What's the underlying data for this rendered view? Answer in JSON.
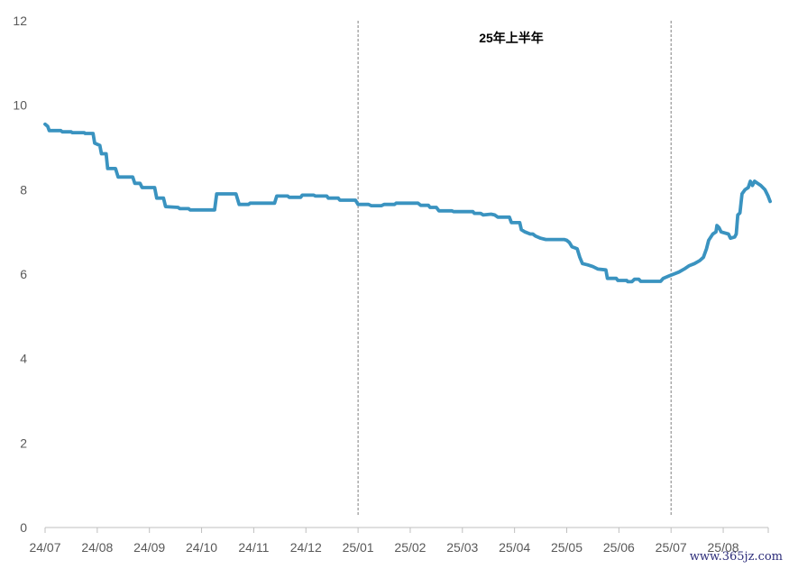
{
  "chart_data": {
    "type": "line",
    "title": "",
    "xlabel": "",
    "ylabel": "",
    "ylim": [
      0,
      12
    ],
    "yticks": [
      0,
      2,
      4,
      6,
      8,
      10,
      12
    ],
    "x_tick_labels": [
      "24/07",
      "24/08",
      "24/09",
      "24/10",
      "24/11",
      "24/12",
      "25/01",
      "25/02",
      "25/03",
      "25/04",
      "25/05",
      "25/06",
      "25/07",
      "25/08"
    ],
    "grid": false,
    "legend": "none",
    "line_color": "#3a93c0",
    "divider_color": "#7f7f7f",
    "annotation": "25年上半年",
    "period_dividers": [
      "25/01",
      "25/07"
    ],
    "x_span_months": [
      0,
      13.95
    ],
    "series": [
      {
        "points": [
          [
            0.0,
            9.55
          ],
          [
            0.05,
            9.5
          ],
          [
            0.08,
            9.4
          ],
          [
            0.3,
            9.4
          ],
          [
            0.33,
            9.37
          ],
          [
            0.5,
            9.37
          ],
          [
            0.52,
            9.35
          ],
          [
            0.75,
            9.35
          ],
          [
            0.77,
            9.33
          ],
          [
            0.92,
            9.33
          ],
          [
            0.95,
            9.1
          ],
          [
            1.05,
            9.05
          ],
          [
            1.08,
            8.85
          ],
          [
            1.17,
            8.85
          ],
          [
            1.2,
            8.5
          ],
          [
            1.35,
            8.5
          ],
          [
            1.4,
            8.3
          ],
          [
            1.68,
            8.3
          ],
          [
            1.72,
            8.15
          ],
          [
            1.82,
            8.15
          ],
          [
            1.86,
            8.05
          ],
          [
            2.1,
            8.05
          ],
          [
            2.14,
            7.8
          ],
          [
            2.27,
            7.8
          ],
          [
            2.31,
            7.6
          ],
          [
            2.55,
            7.58
          ],
          [
            2.58,
            7.55
          ],
          [
            2.75,
            7.55
          ],
          [
            2.78,
            7.52
          ],
          [
            3.25,
            7.52
          ],
          [
            3.29,
            7.9
          ],
          [
            3.66,
            7.9
          ],
          [
            3.72,
            7.65
          ],
          [
            3.9,
            7.65
          ],
          [
            3.93,
            7.68
          ],
          [
            4.4,
            7.68
          ],
          [
            4.44,
            7.85
          ],
          [
            4.65,
            7.85
          ],
          [
            4.68,
            7.82
          ],
          [
            4.9,
            7.82
          ],
          [
            4.93,
            7.87
          ],
          [
            5.15,
            7.87
          ],
          [
            5.18,
            7.85
          ],
          [
            5.4,
            7.85
          ],
          [
            5.43,
            7.8
          ],
          [
            5.62,
            7.8
          ],
          [
            5.65,
            7.75
          ],
          [
            5.95,
            7.75
          ],
          [
            6.0,
            7.65
          ],
          [
            6.2,
            7.65
          ],
          [
            6.25,
            7.62
          ],
          [
            6.45,
            7.62
          ],
          [
            6.5,
            7.65
          ],
          [
            6.7,
            7.65
          ],
          [
            6.73,
            7.68
          ],
          [
            7.15,
            7.68
          ],
          [
            7.2,
            7.63
          ],
          [
            7.35,
            7.63
          ],
          [
            7.38,
            7.58
          ],
          [
            7.5,
            7.58
          ],
          [
            7.55,
            7.5
          ],
          [
            7.8,
            7.5
          ],
          [
            7.83,
            7.48
          ],
          [
            8.2,
            7.48
          ],
          [
            8.23,
            7.44
          ],
          [
            8.35,
            7.44
          ],
          [
            8.4,
            7.4
          ],
          [
            8.55,
            7.42
          ],
          [
            8.62,
            7.4
          ],
          [
            8.68,
            7.35
          ],
          [
            8.9,
            7.35
          ],
          [
            8.94,
            7.22
          ],
          [
            9.1,
            7.22
          ],
          [
            9.13,
            7.05
          ],
          [
            9.2,
            7.0
          ],
          [
            9.3,
            6.95
          ],
          [
            9.35,
            6.95
          ],
          [
            9.4,
            6.9
          ],
          [
            9.5,
            6.85
          ],
          [
            9.6,
            6.82
          ],
          [
            9.95,
            6.82
          ],
          [
            10.0,
            6.8
          ],
          [
            10.05,
            6.75
          ],
          [
            10.1,
            6.65
          ],
          [
            10.2,
            6.6
          ],
          [
            10.25,
            6.4
          ],
          [
            10.3,
            6.25
          ],
          [
            10.4,
            6.22
          ],
          [
            10.5,
            6.18
          ],
          [
            10.6,
            6.12
          ],
          [
            10.75,
            6.1
          ],
          [
            10.78,
            5.9
          ],
          [
            10.95,
            5.9
          ],
          [
            10.98,
            5.85
          ],
          [
            11.15,
            5.85
          ],
          [
            11.17,
            5.82
          ],
          [
            11.25,
            5.82
          ],
          [
            11.3,
            5.88
          ],
          [
            11.38,
            5.88
          ],
          [
            11.42,
            5.83
          ],
          [
            11.8,
            5.83
          ],
          [
            11.85,
            5.9
          ],
          [
            11.95,
            5.95
          ],
          [
            12.05,
            6.0
          ],
          [
            12.15,
            6.05
          ],
          [
            12.25,
            6.12
          ],
          [
            12.35,
            6.2
          ],
          [
            12.45,
            6.25
          ],
          [
            12.55,
            6.32
          ],
          [
            12.62,
            6.4
          ],
          [
            12.68,
            6.6
          ],
          [
            12.72,
            6.8
          ],
          [
            12.8,
            6.95
          ],
          [
            12.86,
            7.0
          ],
          [
            12.88,
            7.15
          ],
          [
            12.92,
            7.1
          ],
          [
            12.96,
            7.0
          ],
          [
            13.1,
            6.95
          ],
          [
            13.14,
            6.85
          ],
          [
            13.22,
            6.88
          ],
          [
            13.25,
            6.95
          ],
          [
            13.28,
            7.4
          ],
          [
            13.32,
            7.45
          ],
          [
            13.36,
            7.9
          ],
          [
            13.42,
            8.0
          ],
          [
            13.48,
            8.05
          ],
          [
            13.52,
            8.2
          ],
          [
            13.56,
            8.1
          ],
          [
            13.6,
            8.2
          ],
          [
            13.66,
            8.15
          ],
          [
            13.72,
            8.1
          ],
          [
            13.8,
            8.0
          ],
          [
            13.86,
            7.85
          ],
          [
            13.9,
            7.72
          ]
        ]
      }
    ]
  },
  "watermark": "www.365jz.com"
}
